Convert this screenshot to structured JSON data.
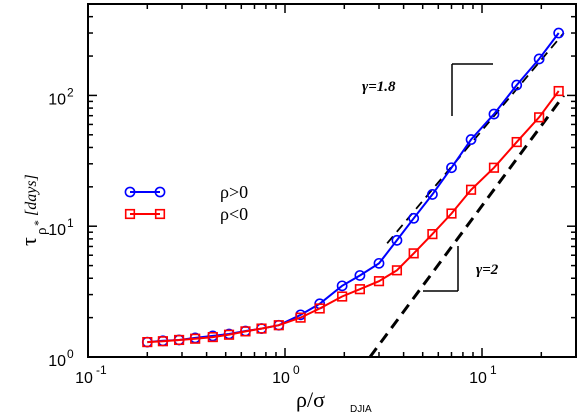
{
  "chart_data": {
    "type": "line",
    "xscale": "log",
    "yscale": "log",
    "xlim": [
      0.1,
      30
    ],
    "ylim": [
      1,
      500
    ],
    "grid": false,
    "legend_position": "center-left",
    "xlabel": {
      "main": "ρ/σ",
      "sub": "DJIA"
    },
    "ylabel": {
      "main": "τ",
      "sub": "ρ",
      "sup": "*",
      "unit": "[days]"
    },
    "x_ticks": [
      {
        "value": 0.1,
        "base": "10",
        "exp": "-1"
      },
      {
        "value": 1,
        "base": "10",
        "exp": "0"
      },
      {
        "value": 10,
        "base": "10",
        "exp": "1"
      }
    ],
    "y_ticks": [
      {
        "value": 1,
        "base": "10",
        "exp": "0"
      },
      {
        "value": 10,
        "base": "10",
        "exp": "1"
      },
      {
        "value": 100,
        "base": "10",
        "exp": "2"
      }
    ],
    "series": [
      {
        "name": "ρ>0",
        "color": "#0000ff",
        "marker": "circle",
        "x": [
          0.2,
          0.24,
          0.29,
          0.35,
          0.43,
          0.52,
          0.63,
          0.76,
          0.93,
          1.2,
          1.5,
          1.95,
          2.4,
          3.0,
          3.7,
          4.5,
          5.6,
          7.0,
          8.8,
          11.5,
          15.0,
          19.5,
          24.5
        ],
        "y": [
          1.3,
          1.33,
          1.35,
          1.4,
          1.45,
          1.5,
          1.58,
          1.65,
          1.75,
          2.1,
          2.55,
          3.5,
          4.2,
          5.2,
          7.8,
          11.5,
          17.5,
          28,
          46,
          72,
          120,
          190,
          300
        ]
      },
      {
        "name": "ρ<0",
        "color": "#ff0000",
        "marker": "square",
        "x": [
          0.2,
          0.24,
          0.29,
          0.35,
          0.43,
          0.52,
          0.63,
          0.76,
          0.93,
          1.2,
          1.5,
          1.95,
          2.4,
          3.0,
          3.7,
          4.5,
          5.6,
          7.0,
          8.8,
          11.5,
          15.0,
          19.5,
          24.5
        ],
        "y": [
          1.3,
          1.32,
          1.35,
          1.38,
          1.42,
          1.48,
          1.57,
          1.65,
          1.75,
          2.0,
          2.35,
          2.9,
          3.3,
          3.8,
          4.6,
          6.2,
          8.7,
          12.5,
          19,
          28,
          44,
          68,
          108
        ]
      }
    ],
    "reference_lines": [
      {
        "style": "dashed-thin",
        "slope": 1.8,
        "x": [
          3.3,
          26
        ],
        "y": [
          7.4,
          300
        ]
      },
      {
        "style": "dashed-thick",
        "slope": 2,
        "x": [
          2.7,
          26
        ],
        "y": [
          1.0,
          100
        ]
      }
    ],
    "annotations": [
      {
        "name": "gamma-1-8",
        "text": "γ=1.8"
      },
      {
        "name": "gamma-2",
        "text": "γ=2"
      }
    ]
  }
}
